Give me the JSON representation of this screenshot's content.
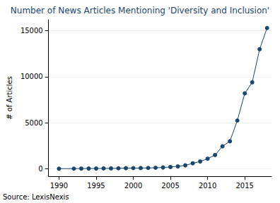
{
  "chart_data": {
    "type": "line",
    "title": "Number of News Articles Mentioning 'Diversity and Inclusion'",
    "y_label": "# of Articles",
    "note": "Source: LexisNexis",
    "x": [
      1990,
      1992,
      1993,
      1994,
      1995,
      1996,
      1997,
      1998,
      1999,
      2000,
      2001,
      2002,
      2003,
      2004,
      2005,
      2006,
      2007,
      2008,
      2009,
      2010,
      2011,
      2012,
      2013,
      2014,
      2015,
      2016,
      2017,
      2018
    ],
    "values": [
      20,
      25,
      30,
      35,
      40,
      45,
      50,
      60,
      70,
      80,
      90,
      100,
      120,
      150,
      200,
      270,
      380,
      600,
      800,
      1100,
      1500,
      2450,
      3000,
      5250,
      8200,
      9400,
      13000,
      15300
    ],
    "color": "#1a476f",
    "marker": "circle",
    "xlim": [
      1988.6,
      2018.6
    ],
    "xticks": [
      1990,
      1995,
      2000,
      2005,
      2010,
      2015
    ],
    "ylim": [
      -800,
      16200
    ],
    "yticks": [
      0,
      5000,
      10000,
      15000
    ],
    "grid": true
  }
}
